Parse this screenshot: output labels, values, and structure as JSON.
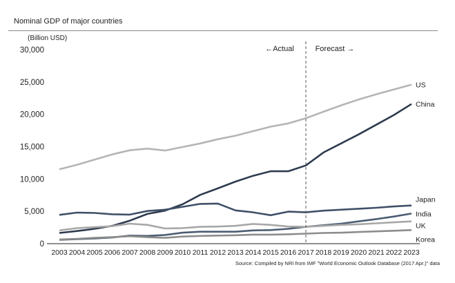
{
  "title": "Nominal GDP of major countries",
  "unit": "(Billion USD)",
  "source": "Source: Compiled by NRI from  IMF \"World Economic Outlook Database (2017 Apr.)\"  data",
  "annotations": {
    "actual": "←Actual",
    "forecast": "Forecast →"
  },
  "chart_data": {
    "type": "line",
    "x": [
      "2003",
      "2004",
      "2005",
      "2006",
      "2007",
      "2008",
      "2009",
      "2010",
      "2011",
      "2012",
      "2013",
      "2014",
      "2015",
      "2016",
      "2017",
      "2018",
      "2019",
      "2020",
      "2021",
      "2022",
      "2023"
    ],
    "ylabel": "(Billion USD)",
    "ylim": [
      0,
      30000
    ],
    "yticks": [
      "0",
      "5,000",
      "10,000",
      "15,000",
      "20,000",
      "25,000",
      "30,000"
    ],
    "divider_after": "2017",
    "grid": false,
    "series": [
      {
        "name": "US",
        "color": "#b5b5b5",
        "values": [
          11500,
          12200,
          13000,
          13800,
          14450,
          14700,
          14400,
          14950,
          15500,
          16150,
          16700,
          17400,
          18100,
          18600,
          19400,
          20400,
          21400,
          22300,
          23100,
          23850,
          24600
        ]
      },
      {
        "name": "China",
        "color": "#2e3b4e",
        "values": [
          1650,
          1950,
          2300,
          2750,
          3550,
          4600,
          5100,
          6100,
          7550,
          8550,
          9600,
          10500,
          11200,
          11200,
          12100,
          14100,
          15500,
          16900,
          18400,
          19900,
          21600
        ]
      },
      {
        "name": "Japan",
        "color": "#3f5068",
        "values": [
          4450,
          4800,
          4750,
          4550,
          4500,
          5050,
          5250,
          5700,
          6150,
          6200,
          5150,
          4850,
          4400,
          4950,
          4850,
          5100,
          5250,
          5400,
          5550,
          5750,
          5900
        ]
      },
      {
        "name": "India",
        "color": "#4b5d73",
        "values": [
          600,
          700,
          800,
          950,
          1250,
          1200,
          1350,
          1700,
          1850,
          1850,
          1850,
          2050,
          2100,
          2300,
          2600,
          2850,
          3100,
          3450,
          3800,
          4200,
          4650
        ]
      },
      {
        "name": "UK",
        "color": "#a7a7a7",
        "values": [
          2050,
          2400,
          2550,
          2700,
          3100,
          2900,
          2350,
          2400,
          2600,
          2650,
          2750,
          3050,
          2900,
          2650,
          2600,
          2750,
          2900,
          3000,
          3150,
          3300,
          3450
        ]
      },
      {
        "name": "Korea",
        "color": "#8c8c8c",
        "values": [
          650,
          750,
          900,
          1000,
          1150,
          1000,
          900,
          1100,
          1200,
          1250,
          1300,
          1400,
          1400,
          1450,
          1550,
          1650,
          1700,
          1800,
          1900,
          2000,
          2100
        ]
      }
    ]
  }
}
